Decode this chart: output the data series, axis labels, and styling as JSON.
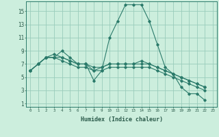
{
  "title": "",
  "xlabel": "Humidex (Indice chaleur)",
  "background_color": "#cceedd",
  "grid_color": "#99ccbb",
  "line_color": "#2a7a6a",
  "xlim": [
    -0.5,
    23.5
  ],
  "ylim": [
    0.5,
    16.5
  ],
  "xtick_labels": [
    "0",
    "1",
    "2",
    "3",
    "4",
    "5",
    "6",
    "7",
    "8",
    "9",
    "10",
    "11",
    "12",
    "13",
    "14",
    "15",
    "16",
    "17",
    "18",
    "19",
    "20",
    "21",
    "22",
    "23"
  ],
  "xtick_vals": [
    0,
    1,
    2,
    3,
    4,
    5,
    6,
    7,
    8,
    9,
    10,
    11,
    12,
    13,
    14,
    15,
    16,
    17,
    18,
    19,
    20,
    21,
    22,
    23
  ],
  "yticks": [
    1,
    3,
    5,
    7,
    9,
    11,
    13,
    15
  ],
  "series": [
    {
      "x": [
        0,
        1,
        2,
        3,
        4,
        5,
        6,
        7,
        8,
        9,
        10,
        11,
        12,
        13,
        14,
        15,
        16,
        17,
        18,
        19,
        20,
        21,
        22
      ],
      "y": [
        6,
        7,
        8,
        8,
        9,
        8,
        7,
        7,
        4.5,
        6,
        11,
        13.5,
        16,
        16,
        16,
        13.5,
        10,
        6.5,
        5.5,
        3.5,
        2.5,
        2.5,
        1.5
      ]
    },
    {
      "x": [
        0,
        1,
        2,
        3,
        4,
        5,
        6,
        7,
        8,
        9,
        10,
        11,
        12,
        13,
        14,
        15,
        16,
        17,
        18,
        19,
        20,
        21,
        22
      ],
      "y": [
        6,
        7,
        8,
        8.5,
        8,
        7.5,
        7,
        7,
        6.0,
        6.5,
        7,
        7,
        7,
        7,
        7,
        7,
        6.5,
        6,
        5.5,
        5,
        4.5,
        4,
        3.5
      ]
    },
    {
      "x": [
        0,
        1,
        2,
        3,
        4,
        5,
        6,
        7,
        8,
        9,
        10,
        11,
        12,
        13,
        14,
        15,
        16,
        17,
        18,
        19,
        20,
        21,
        22
      ],
      "y": [
        6,
        7,
        8,
        8,
        8,
        7.5,
        7,
        7,
        6.5,
        6.5,
        7,
        7,
        7,
        7,
        7.5,
        7,
        6.5,
        6,
        5.5,
        5,
        4.5,
        4,
        3.5
      ]
    },
    {
      "x": [
        0,
        1,
        2,
        3,
        4,
        5,
        6,
        7,
        8,
        9,
        10,
        11,
        12,
        13,
        14,
        15,
        16,
        17,
        18,
        19,
        20,
        21,
        22
      ],
      "y": [
        6,
        7,
        8,
        8,
        7.5,
        7,
        6.5,
        6.5,
        6.0,
        6,
        6.5,
        6.5,
        6.5,
        6.5,
        6.5,
        6.5,
        6,
        5.5,
        5,
        4.5,
        4,
        3.5,
        3
      ]
    }
  ]
}
